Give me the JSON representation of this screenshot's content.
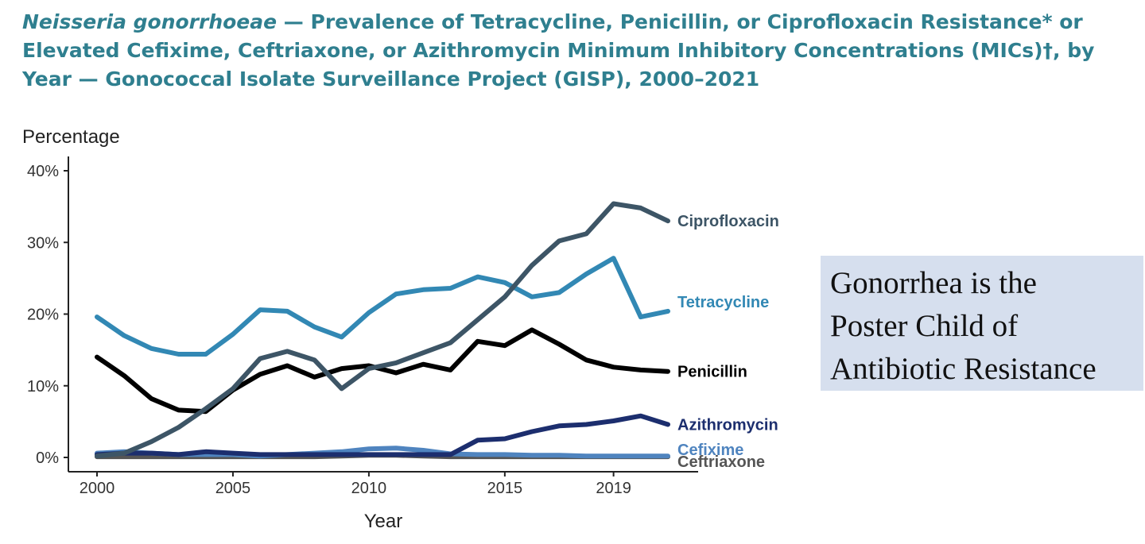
{
  "title": {
    "italic": "Neisseria gonorrhoeae",
    "rest": " — Prevalence of Tetracycline, Penicillin, or Ciprofloxacin Resistance* or Elevated Cefixime, Ceftriaxone, or Azithromycin Minimum Inhibitory Concentrations (MICs)†, by Year — Gonococcal Isolate Surveillance Project (GISP), 2000–2021"
  },
  "callout": {
    "lines": [
      "Gonorrhea is the",
      "Poster Child of",
      "Antibiotic Resistance"
    ]
  },
  "chart_data": {
    "type": "line",
    "ylabel": "Percentage",
    "xlabel": "Year",
    "xlim": [
      2000,
      2021
    ],
    "ylim": [
      0,
      40
    ],
    "x_ticks": [
      2000,
      2005,
      2010,
      2015,
      2019
    ],
    "y_ticks": [
      0,
      10,
      20,
      30,
      40
    ],
    "y_tick_labels": [
      "0%",
      "10%",
      "20%",
      "30%",
      "40%"
    ],
    "grid": false,
    "legend": "direct labels at right end of lines",
    "x": [
      2000,
      2001,
      2002,
      2003,
      2004,
      2005,
      2006,
      2007,
      2008,
      2009,
      2010,
      2011,
      2012,
      2013,
      2014,
      2015,
      2016,
      2017,
      2018,
      2019,
      2020,
      2021
    ],
    "series": [
      {
        "name": "Ciprofloxacin",
        "color": "#3d5566",
        "values": [
          0.2,
          0.6,
          2.2,
          4.2,
          6.8,
          9.6,
          13.8,
          14.8,
          13.6,
          9.6,
          12.4,
          13.2,
          14.6,
          16.0,
          19.2,
          22.4,
          26.8,
          30.2,
          31.2,
          35.4,
          34.8,
          33.0
        ]
      },
      {
        "name": "Tetracycline",
        "color": "#3288b4",
        "values": [
          19.6,
          17.0,
          15.2,
          14.4,
          14.4,
          17.2,
          20.6,
          20.4,
          18.2,
          16.8,
          20.2,
          22.8,
          23.4,
          23.6,
          25.2,
          24.4,
          22.4,
          23.0,
          25.6,
          27.8,
          19.6,
          20.4
        ]
      },
      {
        "name": "Penicillin",
        "color": "#000000",
        "values": [
          14.0,
          11.4,
          8.2,
          6.6,
          6.4,
          9.4,
          11.6,
          12.8,
          11.2,
          12.4,
          12.8,
          11.8,
          13.0,
          12.2,
          16.2,
          15.6,
          17.8,
          15.8,
          13.6,
          12.6,
          12.2,
          12.0
        ]
      },
      {
        "name": "Azithromycin",
        "color": "#1c2e6e",
        "values": [
          0.4,
          0.6,
          0.6,
          0.4,
          0.8,
          0.6,
          0.4,
          0.4,
          0.4,
          0.4,
          0.4,
          0.4,
          0.4,
          0.4,
          2.4,
          2.6,
          3.6,
          4.4,
          4.6,
          5.1,
          5.8,
          4.6
        ]
      },
      {
        "name": "Cefixime",
        "color": "#4f84bf",
        "values": [
          0.6,
          0.8,
          0.6,
          0.4,
          0.4,
          0.4,
          0.2,
          0.4,
          0.6,
          0.8,
          1.2,
          1.3,
          1.0,
          0.5,
          0.4,
          0.4,
          0.3,
          0.3,
          0.2,
          0.2,
          0.2,
          0.2
        ]
      },
      {
        "name": "Ceftriaxone",
        "color": "#555555",
        "values": [
          0.1,
          0.1,
          0.1,
          0.1,
          0.1,
          0.1,
          0.1,
          0.1,
          0.1,
          0.2,
          0.3,
          0.3,
          0.2,
          0.1,
          0.1,
          0.1,
          0.1,
          0.1,
          0.1,
          0.1,
          0.1,
          0.1
        ]
      }
    ],
    "labels": [
      {
        "text": "Ciprofloxacin",
        "series": "Ciprofloxacin",
        "color": "#3d5566"
      },
      {
        "text": "Tetracycline",
        "series": "Tetracycline",
        "color": "#3288b4"
      },
      {
        "text": "Penicillin",
        "series": "Penicillin",
        "color": "#000000"
      },
      {
        "text": "Azithromycin",
        "series": "Azithromycin",
        "color": "#1c2e6e"
      },
      {
        "text": "Cefixime",
        "series": "Cefixime",
        "color": "#4f84bf"
      },
      {
        "text": "Ceftriaxone",
        "series": "Ceftriaxone",
        "color": "#555555"
      }
    ]
  }
}
